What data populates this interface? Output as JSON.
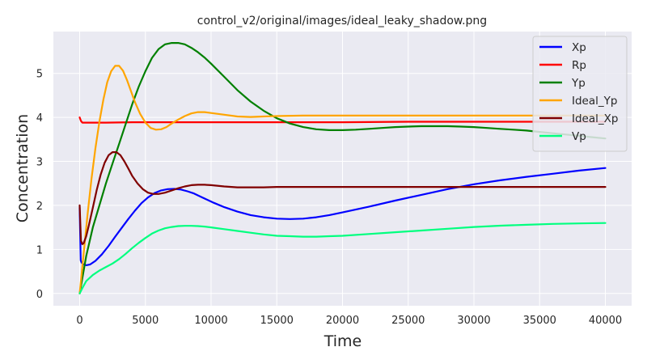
{
  "chart_data": {
    "type": "line",
    "title": "control_v2/original/images/ideal_leaky_shadow.png",
    "xlabel": "Time",
    "ylabel": "Concentration",
    "xlim": [
      -2000,
      42000
    ],
    "ylim": [
      -0.28,
      5.95
    ],
    "xticks": [
      0,
      5000,
      10000,
      15000,
      20000,
      25000,
      30000,
      35000,
      40000
    ],
    "yticks": [
      0,
      1,
      2,
      3,
      4,
      5
    ],
    "grid": true,
    "legend_position": "upper-right",
    "background": "#eaeaf2",
    "series": [
      {
        "name": "Xp",
        "color": "#0000ff",
        "x": [
          0,
          80,
          150,
          300,
          500,
          800,
          1200,
          1700,
          2200,
          2700,
          3200,
          3700,
          4200,
          4700,
          5200,
          5700,
          6200,
          6700,
          7200,
          7700,
          8200,
          8700,
          9200,
          9700,
          10200,
          11000,
          12000,
          13000,
          14000,
          15000,
          16000,
          17000,
          18000,
          19000,
          20000,
          22000,
          24000,
          26000,
          28000,
          30000,
          32000,
          34000,
          36000,
          38000,
          40000
        ],
        "values": [
          1.95,
          0.75,
          0.7,
          0.66,
          0.64,
          0.66,
          0.74,
          0.89,
          1.08,
          1.29,
          1.49,
          1.69,
          1.88,
          2.05,
          2.18,
          2.28,
          2.34,
          2.37,
          2.375,
          2.36,
          2.32,
          2.27,
          2.2,
          2.13,
          2.06,
          1.96,
          1.86,
          1.78,
          1.73,
          1.7,
          1.69,
          1.7,
          1.73,
          1.78,
          1.84,
          1.97,
          2.11,
          2.24,
          2.37,
          2.48,
          2.57,
          2.65,
          2.72,
          2.79,
          2.85
        ]
      },
      {
        "name": "Rp",
        "color": "#ff0000",
        "x": [
          0,
          100,
          200,
          400,
          1000,
          2000,
          4000,
          8000,
          15000,
          20000,
          25000,
          30000,
          35000,
          40000
        ],
        "values": [
          4.0,
          3.92,
          3.88,
          3.88,
          3.88,
          3.88,
          3.89,
          3.89,
          3.89,
          3.89,
          3.9,
          3.9,
          3.9,
          3.9
        ]
      },
      {
        "name": "Yp",
        "color": "#008000",
        "x": [
          0,
          500,
          1000,
          1500,
          2000,
          2500,
          3000,
          3500,
          4000,
          4500,
          5000,
          5500,
          6000,
          6500,
          7000,
          7500,
          8000,
          8500,
          9000,
          9500,
          10000,
          11000,
          12000,
          13000,
          14000,
          15000,
          16000,
          17000,
          18000,
          19000,
          20000,
          21000,
          22000,
          23000,
          24000,
          25000,
          26000,
          27000,
          28000,
          29000,
          30000,
          31000,
          32000,
          33000,
          34000,
          35000,
          36000,
          37000,
          38000,
          39000,
          40000
        ],
        "values": [
          0.0,
          0.85,
          1.5,
          2.0,
          2.5,
          2.95,
          3.4,
          3.85,
          4.3,
          4.7,
          5.05,
          5.35,
          5.55,
          5.66,
          5.69,
          5.69,
          5.66,
          5.58,
          5.48,
          5.36,
          5.22,
          4.92,
          4.62,
          4.36,
          4.15,
          3.98,
          3.86,
          3.78,
          3.73,
          3.71,
          3.71,
          3.72,
          3.74,
          3.76,
          3.78,
          3.79,
          3.8,
          3.8,
          3.8,
          3.79,
          3.78,
          3.76,
          3.74,
          3.72,
          3.7,
          3.67,
          3.64,
          3.61,
          3.58,
          3.55,
          3.52
        ]
      },
      {
        "name": "Ideal_Yp",
        "color": "#ffa500",
        "x": [
          0,
          300,
          600,
          900,
          1200,
          1500,
          1800,
          2100,
          2400,
          2700,
          3000,
          3300,
          3600,
          3900,
          4200,
          4600,
          5000,
          5400,
          5800,
          6200,
          6600,
          7000,
          7500,
          8000,
          8500,
          9000,
          9500,
          10000,
          11000,
          12000,
          13000,
          14000,
          15000,
          17000,
          20000,
          25000,
          30000,
          35000,
          40000
        ],
        "values": [
          0.0,
          0.9,
          1.8,
          2.6,
          3.3,
          3.9,
          4.4,
          4.8,
          5.05,
          5.17,
          5.17,
          5.06,
          4.85,
          4.6,
          4.35,
          4.08,
          3.88,
          3.76,
          3.72,
          3.73,
          3.78,
          3.86,
          3.95,
          4.03,
          4.09,
          4.12,
          4.12,
          4.1,
          4.06,
          4.02,
          4.01,
          4.02,
          4.03,
          4.04,
          4.04,
          4.04,
          4.04,
          4.04,
          4.04
        ]
      },
      {
        "name": "Ideal_Xp",
        "color": "#800000",
        "x": [
          0,
          100,
          200,
          300,
          500,
          700,
          1000,
          1300,
          1600,
          1900,
          2200,
          2500,
          2800,
          3100,
          3400,
          3700,
          4000,
          4400,
          4800,
          5200,
          5600,
          6000,
          6500,
          7000,
          7500,
          8000,
          8500,
          9000,
          9500,
          10000,
          11000,
          12000,
          13000,
          14000,
          15000,
          17000,
          20000,
          25000,
          30000,
          35000,
          40000
        ],
        "values": [
          2.0,
          1.2,
          1.12,
          1.14,
          1.3,
          1.55,
          1.95,
          2.35,
          2.7,
          2.97,
          3.14,
          3.21,
          3.21,
          3.14,
          3.0,
          2.84,
          2.67,
          2.5,
          2.37,
          2.29,
          2.26,
          2.26,
          2.29,
          2.34,
          2.39,
          2.43,
          2.46,
          2.47,
          2.47,
          2.46,
          2.43,
          2.41,
          2.41,
          2.41,
          2.42,
          2.42,
          2.42,
          2.42,
          2.42,
          2.42,
          2.42
        ]
      },
      {
        "name": "Vp",
        "color": "#00ff7f",
        "x": [
          0,
          200,
          500,
          1000,
          1500,
          2000,
          2500,
          3000,
          3500,
          4000,
          4500,
          5000,
          5500,
          6000,
          6500,
          7000,
          7500,
          8000,
          8500,
          9000,
          9500,
          10000,
          11000,
          12000,
          13000,
          14000,
          15000,
          16000,
          17000,
          18000,
          19000,
          20000,
          22000,
          24000,
          26000,
          28000,
          30000,
          32000,
          34000,
          36000,
          38000,
          40000
        ],
        "values": [
          0.0,
          0.12,
          0.28,
          0.42,
          0.52,
          0.6,
          0.68,
          0.78,
          0.9,
          1.03,
          1.15,
          1.26,
          1.36,
          1.43,
          1.48,
          1.51,
          1.53,
          1.535,
          1.535,
          1.53,
          1.52,
          1.5,
          1.46,
          1.42,
          1.38,
          1.34,
          1.31,
          1.3,
          1.29,
          1.29,
          1.3,
          1.31,
          1.35,
          1.39,
          1.43,
          1.47,
          1.51,
          1.54,
          1.56,
          1.58,
          1.59,
          1.6
        ]
      }
    ]
  }
}
